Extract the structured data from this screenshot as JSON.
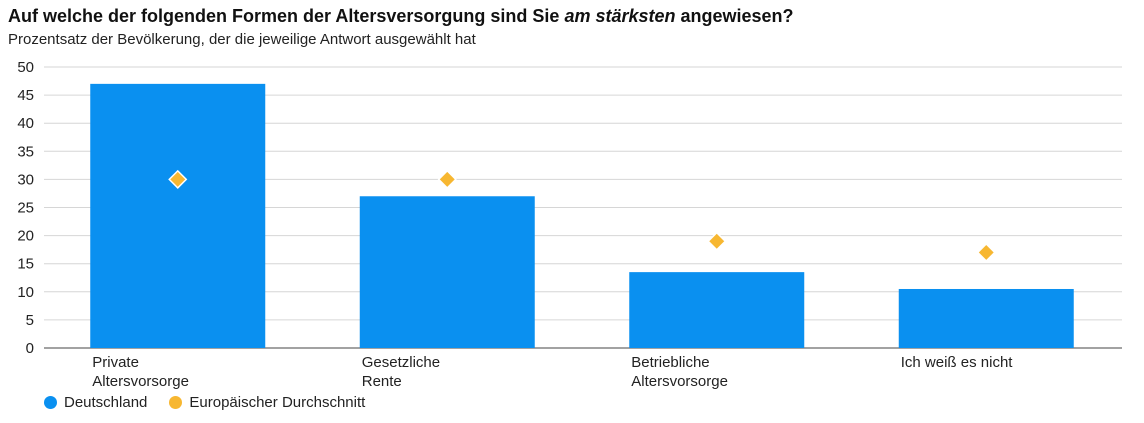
{
  "header": {
    "title_before": "Auf welche der folgenden Formen der Altersversorgung sind Sie ",
    "title_emphasis": "am stärksten",
    "title_after": " angewiesen?",
    "subtitle": "Prozentsatz der Bevölkerung, der die jeweilige Antwort ausgewählt hat"
  },
  "chart_data": {
    "type": "bar",
    "title": "Auf welche der folgenden Formen der Altersversorgung sind Sie am stärksten angewiesen?",
    "subtitle": "Prozentsatz der Bevölkerung, der die jeweilige Antwort ausgewählt hat",
    "categories": [
      [
        "Private",
        "Altersvorsorge"
      ],
      [
        "Gesetzliche",
        "Rente"
      ],
      [
        "Betriebliche",
        "Altersvorsorge"
      ],
      [
        "Ich weiß es nicht"
      ]
    ],
    "series": [
      {
        "name": "Deutschland",
        "kind": "bar",
        "color": "#0a90f0",
        "values": [
          47,
          27,
          13.5,
          10.5
        ]
      },
      {
        "name": "Europäischer Durchschnitt",
        "kind": "marker",
        "color": "#f7b731",
        "values": [
          30,
          30,
          19,
          17
        ]
      }
    ],
    "ylim": [
      0,
      50
    ],
    "yticks": [
      0,
      5,
      10,
      15,
      20,
      25,
      30,
      35,
      40,
      45,
      50
    ],
    "grid": true,
    "legend_position": "bottom-left"
  },
  "legend": [
    {
      "label": "Deutschland",
      "color": "#0a90f0"
    },
    {
      "label": "Europäischer Durchschnitt",
      "color": "#f7b731"
    }
  ]
}
